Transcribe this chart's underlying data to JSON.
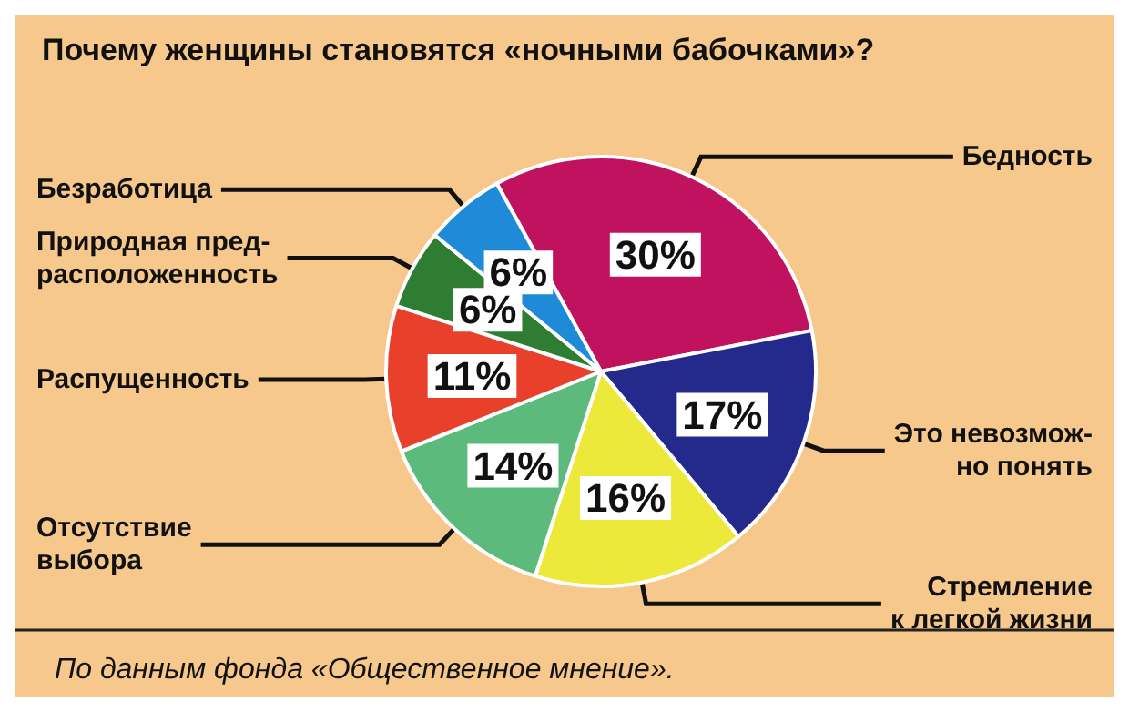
{
  "chart_data": {
    "type": "pie",
    "title": "Почему женщины становятся «ночными бабочками»?",
    "categories": [
      "Бедность",
      "Это невозмож-\nно понять",
      "Стремление\nк легкой жизни",
      "Отсутствие\nвыбора",
      "Распущенность",
      "Природная пред-\nрасположенность",
      "Безработица"
    ],
    "values": [
      30,
      17,
      16,
      14,
      11,
      6,
      6
    ],
    "colors": [
      "#c0125e",
      "#232a8c",
      "#ece93a",
      "#5cba7c",
      "#e8402a",
      "#2e7d32",
      "#1e8ad8"
    ],
    "value_labels": [
      "30%",
      "17%",
      "16%",
      "14%",
      "11%",
      "6%",
      "6%"
    ],
    "annotations": [
      "По данным фонда «Общественное мнение»."
    ]
  }
}
